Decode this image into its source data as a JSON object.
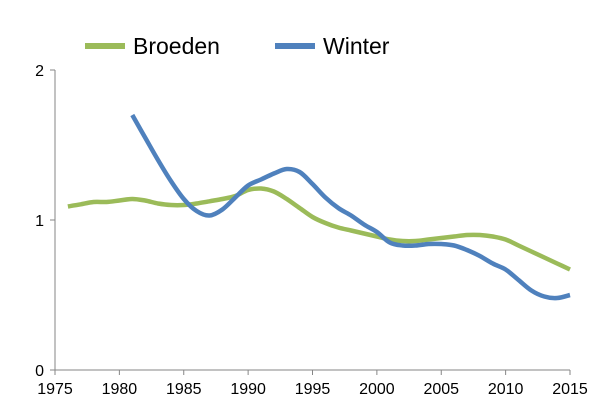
{
  "chart_data": {
    "type": "line",
    "title": "",
    "xlabel": "",
    "ylabel": "",
    "xlim": [
      1975,
      2015
    ],
    "ylim": [
      0,
      2
    ],
    "x_ticks": [
      "1975",
      "1980",
      "1985",
      "1990",
      "1995",
      "2000",
      "2005",
      "2010",
      "2015"
    ],
    "y_ticks": [
      "0",
      "1",
      "2"
    ],
    "grid": false,
    "legend_position": "top",
    "series": [
      {
        "name": "Broeden",
        "color": "#9bbb59",
        "points": [
          [
            1976,
            1.09
          ],
          [
            1977,
            1.105
          ],
          [
            1978,
            1.12
          ],
          [
            1979,
            1.12
          ],
          [
            1980,
            1.13
          ],
          [
            1981,
            1.14
          ],
          [
            1982,
            1.13
          ],
          [
            1983,
            1.11
          ],
          [
            1984,
            1.1
          ],
          [
            1985,
            1.1
          ],
          [
            1986,
            1.11
          ],
          [
            1987,
            1.125
          ],
          [
            1988,
            1.14
          ],
          [
            1989,
            1.16
          ],
          [
            1990,
            1.2
          ],
          [
            1991,
            1.21
          ],
          [
            1992,
            1.19
          ],
          [
            1993,
            1.14
          ],
          [
            1994,
            1.08
          ],
          [
            1995,
            1.02
          ],
          [
            1996,
            0.98
          ],
          [
            1997,
            0.95
          ],
          [
            1998,
            0.93
          ],
          [
            1999,
            0.91
          ],
          [
            2000,
            0.89
          ],
          [
            2001,
            0.87
          ],
          [
            2002,
            0.86
          ],
          [
            2003,
            0.86
          ],
          [
            2004,
            0.87
          ],
          [
            2005,
            0.88
          ],
          [
            2006,
            0.89
          ],
          [
            2007,
            0.9
          ],
          [
            2008,
            0.9
          ],
          [
            2009,
            0.89
          ],
          [
            2010,
            0.87
          ],
          [
            2011,
            0.83
          ],
          [
            2012,
            0.79
          ],
          [
            2013,
            0.75
          ],
          [
            2014,
            0.71
          ],
          [
            2015,
            0.67
          ]
        ]
      },
      {
        "name": "Winter",
        "color": "#4f81bd",
        "points": [
          [
            1981,
            1.7
          ],
          [
            1982,
            1.55
          ],
          [
            1983,
            1.4
          ],
          [
            1984,
            1.26
          ],
          [
            1985,
            1.14
          ],
          [
            1986,
            1.06
          ],
          [
            1987,
            1.03
          ],
          [
            1988,
            1.07
          ],
          [
            1989,
            1.15
          ],
          [
            1990,
            1.23
          ],
          [
            1991,
            1.27
          ],
          [
            1992,
            1.31
          ],
          [
            1993,
            1.34
          ],
          [
            1994,
            1.32
          ],
          [
            1995,
            1.24
          ],
          [
            1996,
            1.15
          ],
          [
            1997,
            1.08
          ],
          [
            1998,
            1.03
          ],
          [
            1999,
            0.97
          ],
          [
            2000,
            0.92
          ],
          [
            2001,
            0.85
          ],
          [
            2002,
            0.83
          ],
          [
            2003,
            0.83
          ],
          [
            2004,
            0.84
          ],
          [
            2005,
            0.84
          ],
          [
            2006,
            0.83
          ],
          [
            2007,
            0.8
          ],
          [
            2008,
            0.76
          ],
          [
            2009,
            0.71
          ],
          [
            2010,
            0.67
          ],
          [
            2011,
            0.6
          ],
          [
            2012,
            0.53
          ],
          [
            2013,
            0.49
          ],
          [
            2014,
            0.48
          ],
          [
            2015,
            0.5
          ]
        ]
      }
    ]
  }
}
